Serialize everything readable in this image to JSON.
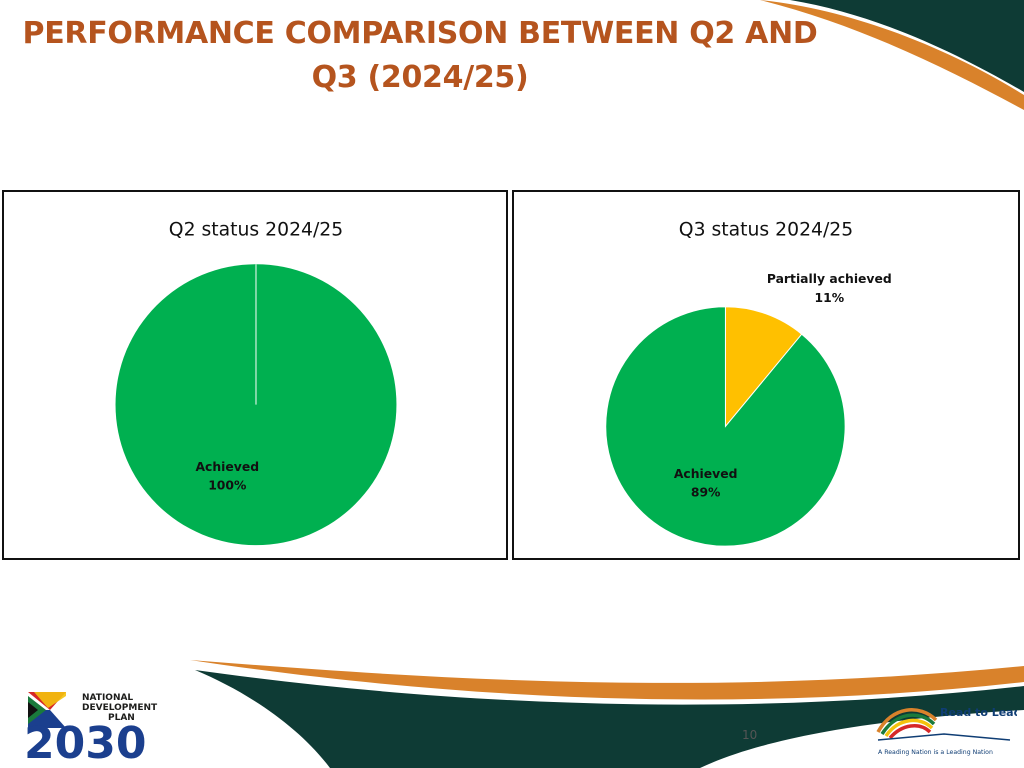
{
  "title": {
    "line1": "PERFORMANCE COMPARISON BETWEEN Q2 AND",
    "line2": "Q3 (2024/25)"
  },
  "colors": {
    "title": "#B5541E",
    "achieved": "#00B050",
    "partially_achieved": "#FFC000",
    "deco_dark": "#0E3B35",
    "deco_orange": "#D9822B"
  },
  "chart_data": [
    {
      "type": "pie",
      "title": "Q2 status 2024/25",
      "categories": [
        "Achieved"
      ],
      "values": [
        100
      ],
      "labels": [
        {
          "category": "Achieved",
          "percent": "100%"
        }
      ],
      "legend": "none"
    },
    {
      "type": "pie",
      "title": "Q3 status 2024/25",
      "categories": [
        "Partially achieved",
        "Achieved"
      ],
      "values": [
        11,
        89
      ],
      "labels": [
        {
          "category": "Partially achieved",
          "percent": "11%"
        },
        {
          "category": "Achieved",
          "percent": "89%"
        }
      ],
      "legend": "none"
    }
  ],
  "footer": {
    "page_number": "10",
    "ndp_logo": {
      "line1": "NATIONAL",
      "line2": "DEVELOPMENT",
      "line3": "PLAN",
      "year": "2030"
    },
    "rtl_logo": {
      "name": "Read to Lead",
      "tagline": "A Reading Nation is a Leading Nation"
    }
  }
}
